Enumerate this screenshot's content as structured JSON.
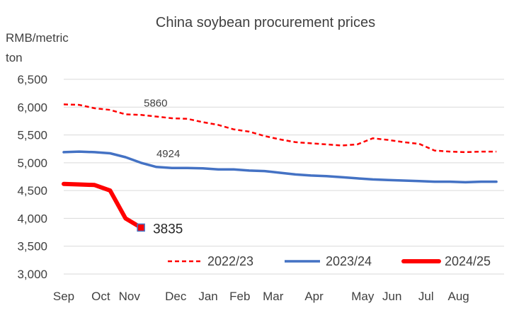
{
  "chart_data": {
    "type": "line",
    "title": "China soybean procurement prices",
    "ylabel_line1": "RMB/metric",
    "ylabel_line2": "ton",
    "xlabel": "",
    "ylim": [
      3000,
      6500
    ],
    "yticks": [
      3000,
      3500,
      4000,
      4500,
      5000,
      5500,
      6000,
      6500
    ],
    "ytick_labels": [
      "3,000",
      "3,500",
      "4,000",
      "4,500",
      "5,000",
      "5,500",
      "6,000",
      "6,500"
    ],
    "x_tick_labels": [
      "Sep",
      "Oct",
      "Nov",
      "Dec",
      "Jan",
      "Feb",
      "Mar",
      "Apr",
      "May",
      "Jun",
      "Jul",
      "Aug"
    ],
    "x_tick_positions": [
      0,
      2.4,
      4.25,
      7.25,
      9.35,
      11.4,
      13.55,
      16.2,
      19.35,
      21.25,
      23.45,
      25.55
    ],
    "x_range": [
      0,
      28.5
    ],
    "grid": true,
    "legend_position": "bottom-right",
    "series": [
      {
        "name": "2022/23",
        "color": "#ff0000",
        "style": "dashed",
        "x": [
          0,
          1,
          2,
          3,
          4,
          5,
          6,
          7,
          8,
          9,
          10,
          11,
          12,
          13,
          14,
          15,
          16,
          17,
          18,
          19,
          20,
          21,
          22,
          23,
          24,
          25,
          26,
          27,
          28
        ],
        "values": [
          6050,
          6040,
          5980,
          5950,
          5870,
          5860,
          5830,
          5800,
          5790,
          5730,
          5680,
          5600,
          5560,
          5480,
          5420,
          5370,
          5350,
          5330,
          5310,
          5330,
          5440,
          5410,
          5370,
          5340,
          5220,
          5200,
          5190,
          5200,
          5200
        ]
      },
      {
        "name": "2023/24",
        "color": "#4472c4",
        "style": "solid",
        "x": [
          0,
          1,
          2,
          3,
          4,
          5,
          6,
          7,
          8,
          9,
          10,
          11,
          12,
          13,
          14,
          15,
          16,
          17,
          18,
          19,
          20,
          21,
          22,
          23,
          24,
          25,
          26,
          27,
          28
        ],
        "values": [
          5190,
          5200,
          5190,
          5170,
          5100,
          5000,
          4924,
          4905,
          4905,
          4900,
          4880,
          4880,
          4860,
          4850,
          4820,
          4790,
          4770,
          4760,
          4740,
          4720,
          4700,
          4690,
          4680,
          4670,
          4660,
          4660,
          4650,
          4660,
          4660
        ]
      },
      {
        "name": "2024/25",
        "color": "#ff0000",
        "style": "solid-thick",
        "x": [
          0,
          1,
          2,
          3,
          4,
          5
        ],
        "values": [
          4620,
          4610,
          4600,
          4500,
          4000,
          3835
        ]
      }
    ],
    "annotations": [
      {
        "text": "5860",
        "series": 0,
        "index": 5
      },
      {
        "text": "4924",
        "series": 1,
        "index": 6
      },
      {
        "text": "3835",
        "series": 2,
        "index": 5
      }
    ]
  }
}
